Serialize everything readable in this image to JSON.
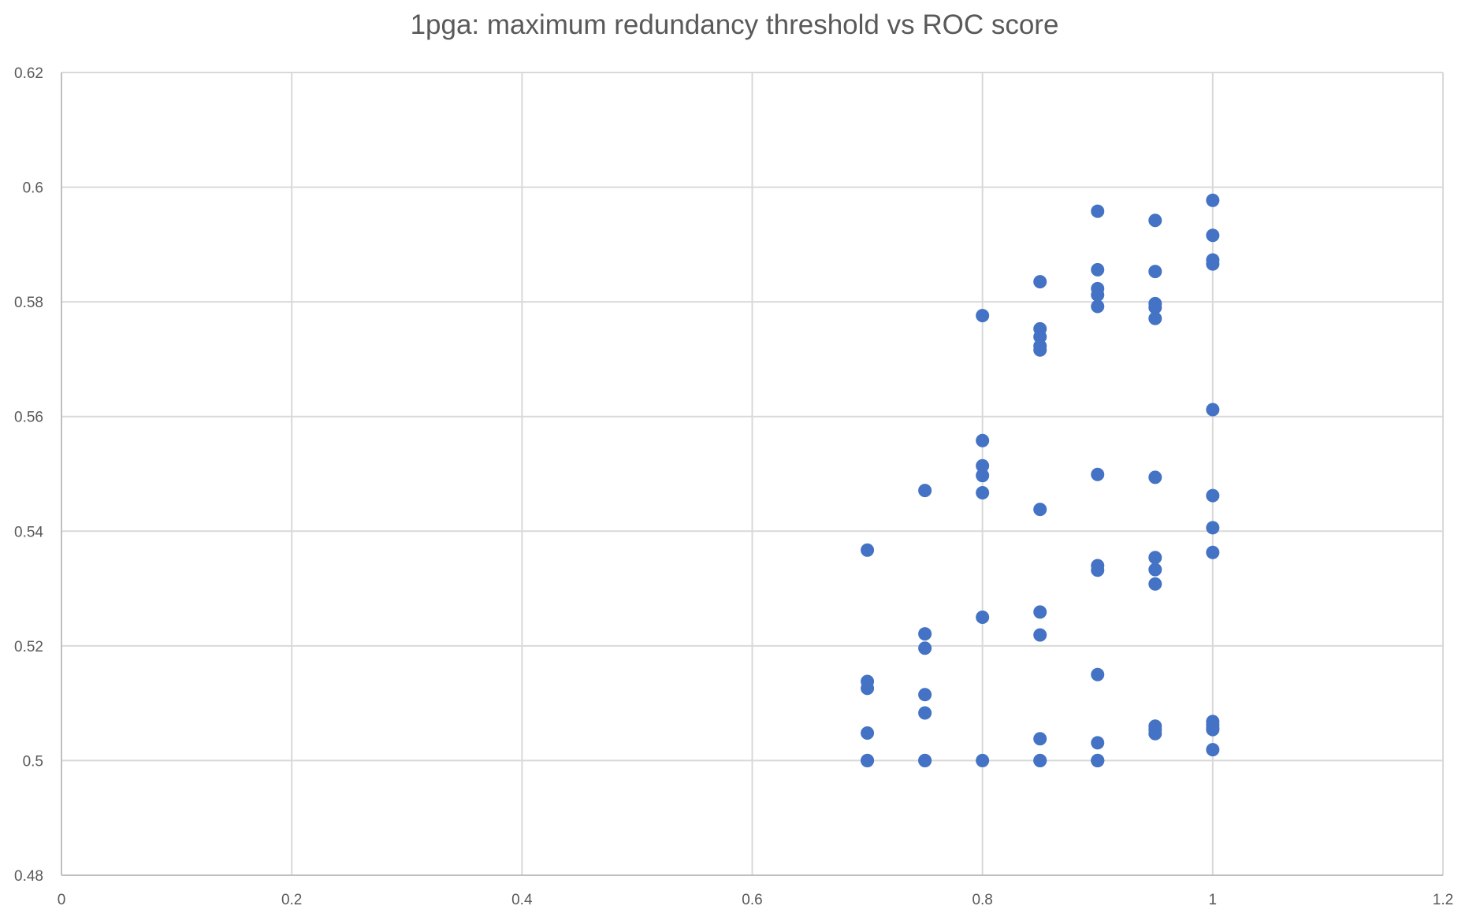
{
  "chart_data": {
    "type": "scatter",
    "title": "1pga: maximum redundancy threshold vs ROC score",
    "xlabel": "",
    "ylabel": "",
    "xlim": [
      0,
      1.2
    ],
    "ylim": [
      0.48,
      0.62
    ],
    "x_ticks": [
      "0",
      "0.2",
      "0.4",
      "0.6",
      "0.8",
      "1",
      "1.2"
    ],
    "y_ticks": [
      "0.48",
      "0.5",
      "0.52",
      "0.54",
      "0.56",
      "0.58",
      "0.6",
      "0.62"
    ],
    "grid": true,
    "legend": "none",
    "marker_color": "#4472c4",
    "series": [
      {
        "x": [
          0.7,
          0.7,
          0.7,
          0.7,
          0.7,
          0.7,
          0.75,
          0.75,
          0.75,
          0.75,
          0.75,
          0.75,
          0.75,
          0.8,
          0.8,
          0.8,
          0.8,
          0.8,
          0.8,
          0.8,
          0.85,
          0.85,
          0.85,
          0.85,
          0.85,
          0.85,
          0.85,
          0.85,
          0.85,
          0.85,
          0.85,
          0.9,
          0.9,
          0.9,
          0.9,
          0.9,
          0.9,
          0.9,
          0.9,
          0.9,
          0.9,
          0.9,
          0.9,
          0.9,
          0.95,
          0.95,
          0.95,
          0.95,
          0.95,
          0.95,
          0.95,
          0.95,
          0.95,
          0.95,
          0.95,
          0.95,
          1,
          1,
          1,
          1,
          1,
          1,
          1,
          1,
          1,
          1,
          1,
          1,
          1
        ],
        "y": [
          0.5367,
          0.5138,
          0.5126,
          0.5048,
          0.5,
          0.5,
          0.5471,
          0.5221,
          0.5196,
          0.5115,
          0.5083,
          0.5,
          0.5,
          0.5776,
          0.5558,
          0.5514,
          0.5497,
          0.5467,
          0.525,
          0.5,
          0.5835,
          0.5753,
          0.5739,
          0.5723,
          0.5716,
          0.5438,
          0.5259,
          0.5219,
          0.5038,
          0.5,
          0.5,
          0.5958,
          0.5856,
          0.5823,
          0.5812,
          0.5792,
          0.5499,
          0.534,
          0.5332,
          0.515,
          0.5031,
          0.5,
          0.5,
          0.5,
          0.5942,
          0.5853,
          0.5797,
          0.579,
          0.5771,
          0.5494,
          0.5354,
          0.5333,
          0.5308,
          0.506,
          0.5054,
          0.5047,
          0.5977,
          0.5916,
          0.5873,
          0.5866,
          0.5612,
          0.5462,
          0.5406,
          0.5363,
          0.5068,
          0.5062,
          0.5057,
          0.5054,
          0.5019
        ]
      }
    ]
  }
}
